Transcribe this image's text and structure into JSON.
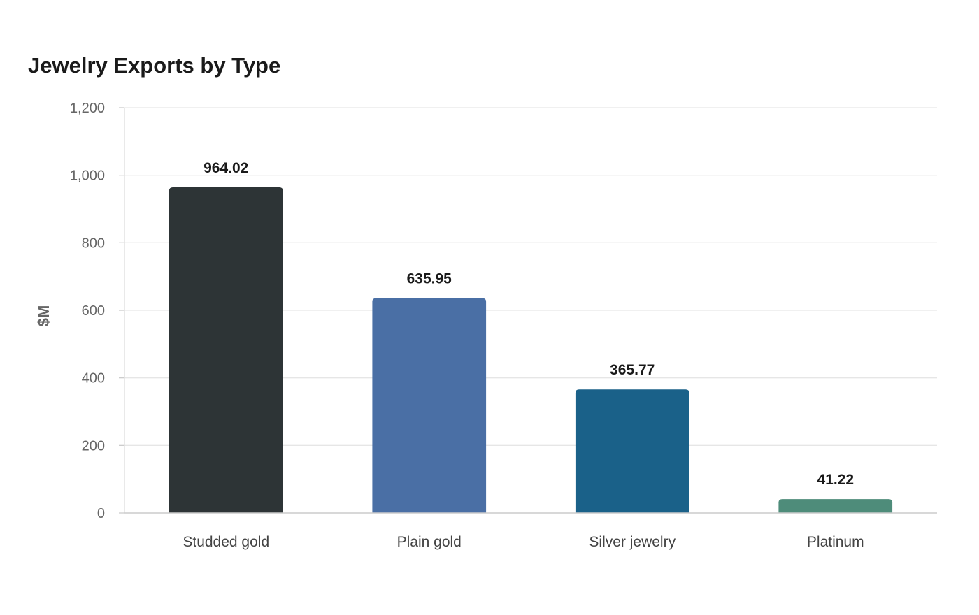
{
  "chart_data": {
    "type": "bar",
    "title": "Jewelry Exports by Type",
    "xlabel": "",
    "ylabel": "$M",
    "categories": [
      "Studded gold",
      "Plain gold",
      "Silver jewelry",
      "Platinum"
    ],
    "values": [
      964.02,
      635.95,
      365.77,
      41.22
    ],
    "value_labels": [
      "964.02",
      "635.95",
      "365.77",
      "41.22"
    ],
    "colors": [
      "#2d3436",
      "#4a6fa5",
      "#1a6189",
      "#4e8c7a"
    ],
    "ylim": [
      0,
      1200
    ],
    "yticks": [
      0,
      200,
      400,
      600,
      800,
      1000,
      1200
    ],
    "ytick_labels": [
      "0",
      "200",
      "400",
      "600",
      "800",
      "1,000",
      "1,200"
    ],
    "grid": true,
    "legend": "none"
  }
}
